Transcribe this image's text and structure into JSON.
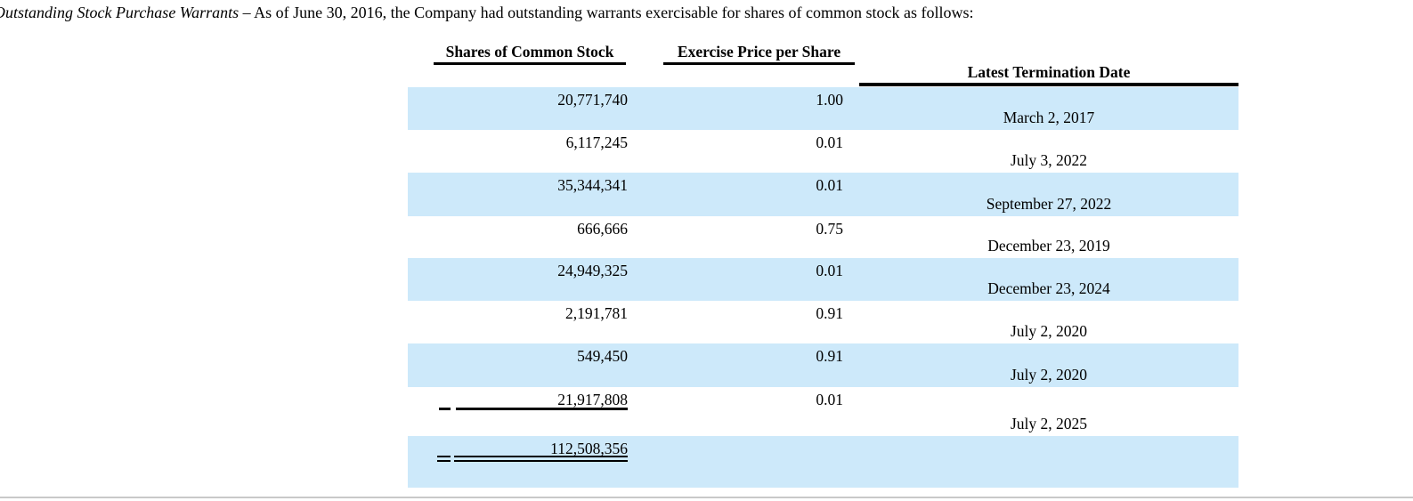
{
  "intro": {
    "italic": "Outstanding Stock Purchase Warrants",
    "rest": " – As of June 30, 2016, the Company had outstanding warrants exercisable for shares of common stock as follows:"
  },
  "table": {
    "headers": {
      "shares": "Shares of Common Stock",
      "price": "Exercise Price per Share",
      "date": "Latest Termination Date"
    },
    "rows": [
      {
        "shares": "20,771,740",
        "price": "1.00",
        "date": "March 2, 2017"
      },
      {
        "shares": "6,117,245",
        "price": "0.01",
        "date": "July 3, 2022"
      },
      {
        "shares": "35,344,341",
        "price": "0.01",
        "date": "September 27, 2022"
      },
      {
        "shares": "666,666",
        "price": "0.75",
        "date": "December 23, 2019"
      },
      {
        "shares": "24,949,325",
        "price": "0.01",
        "date": "December 23, 2024"
      },
      {
        "shares": "2,191,781",
        "price": "0.91",
        "date": "July 2, 2020"
      },
      {
        "shares": "549,450",
        "price": "0.91",
        "date": "July 2, 2020"
      },
      {
        "shares": "21,917,808",
        "price": "0.01",
        "date": "July 2, 2025"
      },
      {
        "shares": "112,508,356",
        "price": "",
        "date": ""
      }
    ],
    "colors": {
      "row_shade": "#cde9fa",
      "rule": "#000000",
      "bottom_divider": "#c9c9c9"
    }
  }
}
